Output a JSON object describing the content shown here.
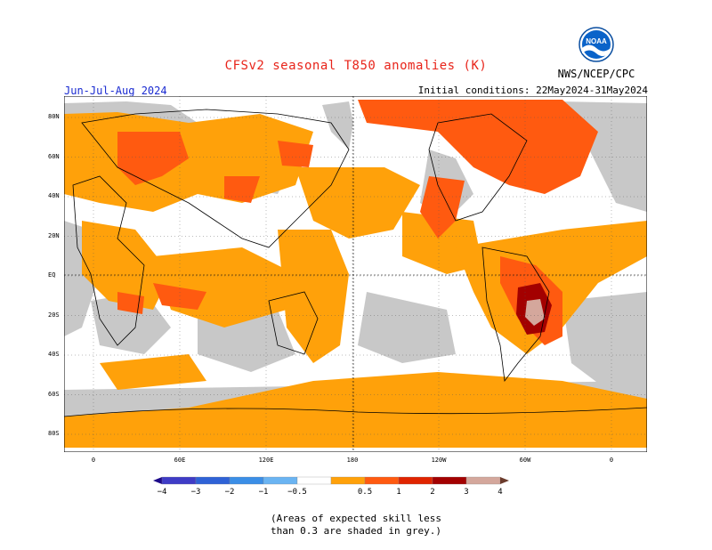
{
  "header": {
    "title": "CFSv2 seasonal T850 anomalies (K)",
    "title_color": "#e8241a",
    "period": "Jun-Jul-Aug 2024",
    "period_color": "#1a2bd1",
    "initial_conditions": "Initial conditions: 22May2024-31May2024",
    "agency": "NWS/NCEP/CPC",
    "logo_text": "NOAA"
  },
  "map": {
    "y_ticks": [
      "80N",
      "60N",
      "40N",
      "20N",
      "EQ",
      "20S",
      "40S",
      "60S",
      "80S"
    ],
    "x_ticks": [
      "0",
      "60E",
      "120E",
      "180",
      "120W",
      "60W",
      "0"
    ]
  },
  "colorbar": {
    "labels": [
      "−4",
      "−3",
      "−2",
      "−1",
      "−0.5",
      "0.5",
      "1",
      "2",
      "3",
      "4"
    ],
    "colors": [
      "#1d0a8a",
      "#3f3cc6",
      "#2f62d6",
      "#3b8ee6",
      "#6ab4f2",
      "#ffffff",
      "#ffa10a",
      "#ff5a10",
      "#e02400",
      "#a30000",
      "#d4a79c",
      "#6b3b2c"
    ],
    "skill_color": "#c8c8c8"
  },
  "footnote": {
    "line1": "(Areas of expected skill less",
    "line2": "than 0.3 are shaded in grey.)"
  }
}
